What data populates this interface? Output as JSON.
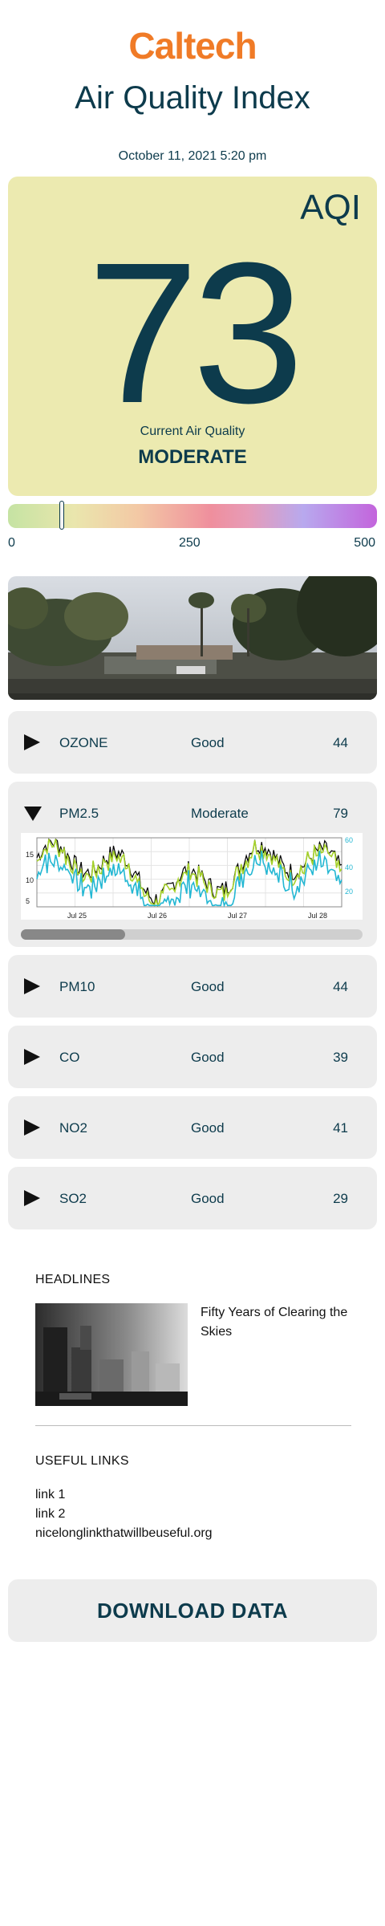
{
  "header": {
    "brand": "Caltech",
    "title": "Air Quality Index",
    "date": "October 11, 2021 5:20 pm"
  },
  "aqi": {
    "label": "AQI",
    "value": "73",
    "caption": "Current Air Quality",
    "category": "MODERATE",
    "card_color": "#eceab0"
  },
  "scale": {
    "ticks": [
      "0",
      "250",
      "500"
    ],
    "current_value": 73,
    "max": 500
  },
  "webcam": {
    "alt": "Live camera view"
  },
  "pollutants": [
    {
      "name": "OZONE",
      "status": "Good",
      "value": "44",
      "expanded": false
    },
    {
      "name": "PM2.5",
      "status": "Moderate",
      "value": "79",
      "expanded": true
    },
    {
      "name": "PM10",
      "status": "Good",
      "value": "44",
      "expanded": false
    },
    {
      "name": "CO",
      "status": "Good",
      "value": "39",
      "expanded": false
    },
    {
      "name": "NO2",
      "status": "Good",
      "value": "41",
      "expanded": false
    },
    {
      "name": "SO2",
      "status": "Good",
      "value": "29",
      "expanded": false
    }
  ],
  "chart_data": {
    "type": "line",
    "x": [
      "Jul 25",
      "Jul 26",
      "Jul 27",
      "Jul 28"
    ],
    "y_left_ticks": [
      "5",
      "10",
      "15"
    ],
    "y_right_ticks": [
      "20",
      "40",
      "60"
    ],
    "series": [
      {
        "color": "#000000"
      },
      {
        "color": "#a6d22a"
      },
      {
        "color": "#23b7d3"
      }
    ],
    "grid": true
  },
  "headlines": {
    "heading": "HEADLINES",
    "items": [
      {
        "title": "Fifty Years of Clearing the Skies"
      }
    ]
  },
  "useful_links": {
    "heading": "USEFUL LINKS",
    "links": [
      "link 1",
      "link 2",
      "nicelonglinkthatwillbeuseful.org"
    ]
  },
  "download": {
    "label": "DOWNLOAD DATA"
  },
  "colors": {
    "brand": "#f07b27",
    "text": "#0d3b4c",
    "card": "#ededed"
  }
}
